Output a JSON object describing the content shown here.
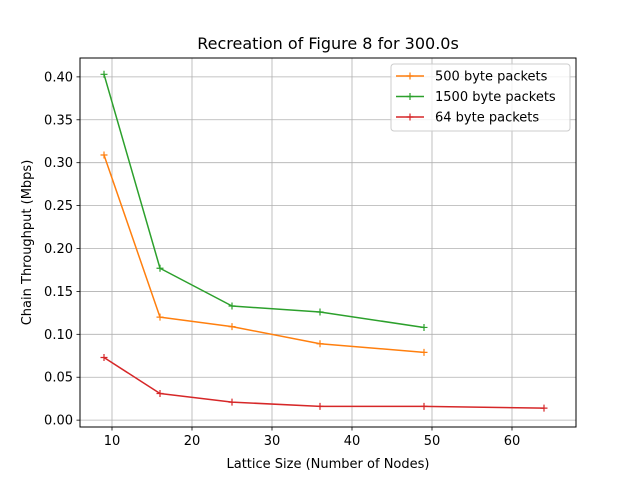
{
  "chart_data": {
    "type": "line",
    "title": "Recreation of Figure 8 for 300.0s",
    "xlabel": "Lattice Size (Number of Nodes)",
    "ylabel": "Chain Throughput (Mbps)",
    "xlim": [
      6,
      68
    ],
    "ylim": [
      -0.008,
      0.422
    ],
    "x_ticks": [
      10,
      20,
      30,
      40,
      50,
      60
    ],
    "y_ticks": [
      0.0,
      0.05,
      0.1,
      0.15,
      0.2,
      0.25,
      0.3,
      0.35,
      0.4
    ],
    "x_tick_labels": [
      "10",
      "20",
      "30",
      "40",
      "50",
      "60"
    ],
    "y_tick_labels": [
      "0.00",
      "0.05",
      "0.10",
      "0.15",
      "0.20",
      "0.25",
      "0.30",
      "0.35",
      "0.40"
    ],
    "grid": true,
    "legend_position": "top-right",
    "series": [
      {
        "name": "500 byte packets",
        "color": "#ff7f0e",
        "x": [
          9,
          16,
          25,
          36,
          49
        ],
        "y": [
          0.309,
          0.12,
          0.109,
          0.089,
          0.079
        ]
      },
      {
        "name": "1500 byte packets",
        "color": "#2ca02c",
        "x": [
          9,
          16,
          25,
          36,
          49
        ],
        "y": [
          0.403,
          0.177,
          0.133,
          0.126,
          0.108
        ]
      },
      {
        "name": "64 byte packets",
        "color": "#d62728",
        "x": [
          9,
          16,
          25,
          36,
          49,
          64
        ],
        "y": [
          0.073,
          0.031,
          0.021,
          0.016,
          0.016,
          0.014
        ]
      }
    ]
  }
}
